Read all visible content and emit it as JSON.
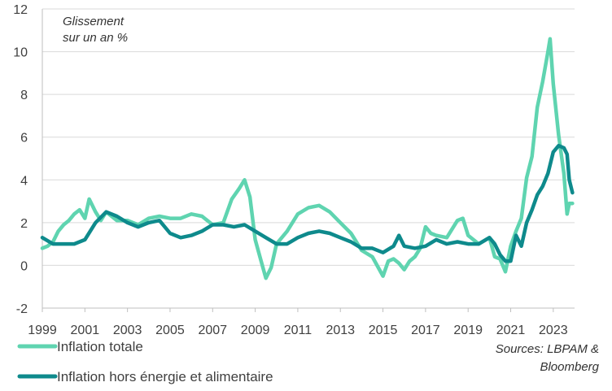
{
  "chart_data": {
    "type": "line",
    "title": "",
    "annotation": [
      "Glissement",
      "sur un an %"
    ],
    "xlabel": "",
    "ylabel": "",
    "xlim": [
      1999.0,
      2024.0
    ],
    "ylim": [
      -2,
      12
    ],
    "yticks": [
      -2,
      0,
      2,
      4,
      6,
      8,
      10,
      12
    ],
    "xticks": [
      1999,
      2001,
      2003,
      2005,
      2007,
      2009,
      2011,
      2013,
      2015,
      2017,
      2019,
      2021,
      2023
    ],
    "xticklabels": [
      "1999",
      "2001",
      "2003",
      "2005",
      "2007",
      "2009",
      "2011",
      "2013",
      "2015",
      "2017",
      "2019",
      "2021",
      "2023"
    ],
    "grid": "horizontal",
    "legend_position": "bottom-left",
    "source": [
      "Sources: LBPAM &",
      "Bloomberg"
    ],
    "series": [
      {
        "name": "Inflation totale",
        "color": "#5fd4b0",
        "x": [
          1999.0,
          1999.25,
          1999.5,
          1999.75,
          2000.0,
          2000.25,
          2000.5,
          2000.75,
          2001.0,
          2001.2,
          2001.5,
          2001.75,
          2002.0,
          2002.5,
          2003.0,
          2003.5,
          2004.0,
          2004.5,
          2005.0,
          2005.5,
          2006.0,
          2006.5,
          2007.0,
          2007.5,
          2007.9,
          2008.25,
          2008.5,
          2008.75,
          2009.0,
          2009.25,
          2009.5,
          2009.75,
          2010.0,
          2010.5,
          2011.0,
          2011.5,
          2012.0,
          2012.5,
          2013.0,
          2013.5,
          2014.0,
          2014.5,
          2015.0,
          2015.25,
          2015.5,
          2015.75,
          2016.0,
          2016.25,
          2016.5,
          2016.75,
          2017.0,
          2017.25,
          2017.5,
          2018.0,
          2018.5,
          2018.75,
          2019.0,
          2019.5,
          2020.0,
          2020.25,
          2020.5,
          2020.75,
          2021.0,
          2021.25,
          2021.5,
          2021.75,
          2022.0,
          2022.25,
          2022.5,
          2022.75,
          2022.85,
          2023.0,
          2023.25,
          2023.5,
          2023.65,
          2023.75,
          2023.9
        ],
        "values": [
          0.8,
          0.9,
          1.1,
          1.6,
          1.9,
          2.1,
          2.4,
          2.6,
          2.2,
          3.1,
          2.5,
          2.1,
          2.5,
          2.1,
          2.1,
          1.9,
          2.2,
          2.3,
          2.2,
          2.2,
          2.4,
          2.3,
          1.9,
          2.0,
          3.1,
          3.6,
          4.0,
          3.2,
          1.2,
          0.3,
          -0.6,
          -0.1,
          1.0,
          1.6,
          2.4,
          2.7,
          2.8,
          2.5,
          2.0,
          1.5,
          0.7,
          0.4,
          -0.5,
          0.2,
          0.3,
          0.1,
          -0.2,
          0.2,
          0.4,
          0.8,
          1.8,
          1.5,
          1.4,
          1.3,
          2.1,
          2.2,
          1.4,
          1.0,
          1.3,
          0.4,
          0.3,
          -0.3,
          0.9,
          1.6,
          2.2,
          4.1,
          5.1,
          7.4,
          8.6,
          10.0,
          10.6,
          8.5,
          6.1,
          4.3,
          2.4,
          2.9,
          2.9
        ]
      },
      {
        "name": "Inflation hors énergie et alimentaire",
        "color": "#0e8a8c",
        "x": [
          1999.0,
          1999.5,
          2000.0,
          2000.5,
          2001.0,
          2001.5,
          2002.0,
          2002.5,
          2003.0,
          2003.5,
          2004.0,
          2004.5,
          2005.0,
          2005.5,
          2006.0,
          2006.5,
          2007.0,
          2007.5,
          2008.0,
          2008.5,
          2009.0,
          2009.5,
          2010.0,
          2010.5,
          2011.0,
          2011.5,
          2012.0,
          2012.5,
          2013.0,
          2013.5,
          2014.0,
          2014.5,
          2015.0,
          2015.5,
          2015.75,
          2016.0,
          2016.5,
          2017.0,
          2017.5,
          2018.0,
          2018.5,
          2019.0,
          2019.5,
          2020.0,
          2020.25,
          2020.5,
          2020.75,
          2021.0,
          2021.25,
          2021.5,
          2021.75,
          2022.0,
          2022.25,
          2022.5,
          2022.75,
          2023.0,
          2023.25,
          2023.5,
          2023.65,
          2023.75,
          2023.9
        ],
        "values": [
          1.3,
          1.0,
          1.0,
          1.0,
          1.2,
          2.0,
          2.5,
          2.3,
          2.0,
          1.8,
          2.0,
          2.1,
          1.5,
          1.3,
          1.4,
          1.6,
          1.9,
          1.9,
          1.8,
          1.9,
          1.6,
          1.3,
          1.0,
          1.0,
          1.3,
          1.5,
          1.6,
          1.5,
          1.3,
          1.1,
          0.8,
          0.8,
          0.6,
          0.9,
          1.4,
          0.9,
          0.8,
          0.9,
          1.2,
          1.0,
          1.1,
          1.0,
          1.0,
          1.3,
          1.0,
          0.5,
          0.2,
          0.2,
          1.4,
          0.9,
          2.0,
          2.6,
          3.3,
          3.7,
          4.3,
          5.3,
          5.6,
          5.5,
          5.2,
          4.0,
          3.4
        ]
      }
    ]
  }
}
